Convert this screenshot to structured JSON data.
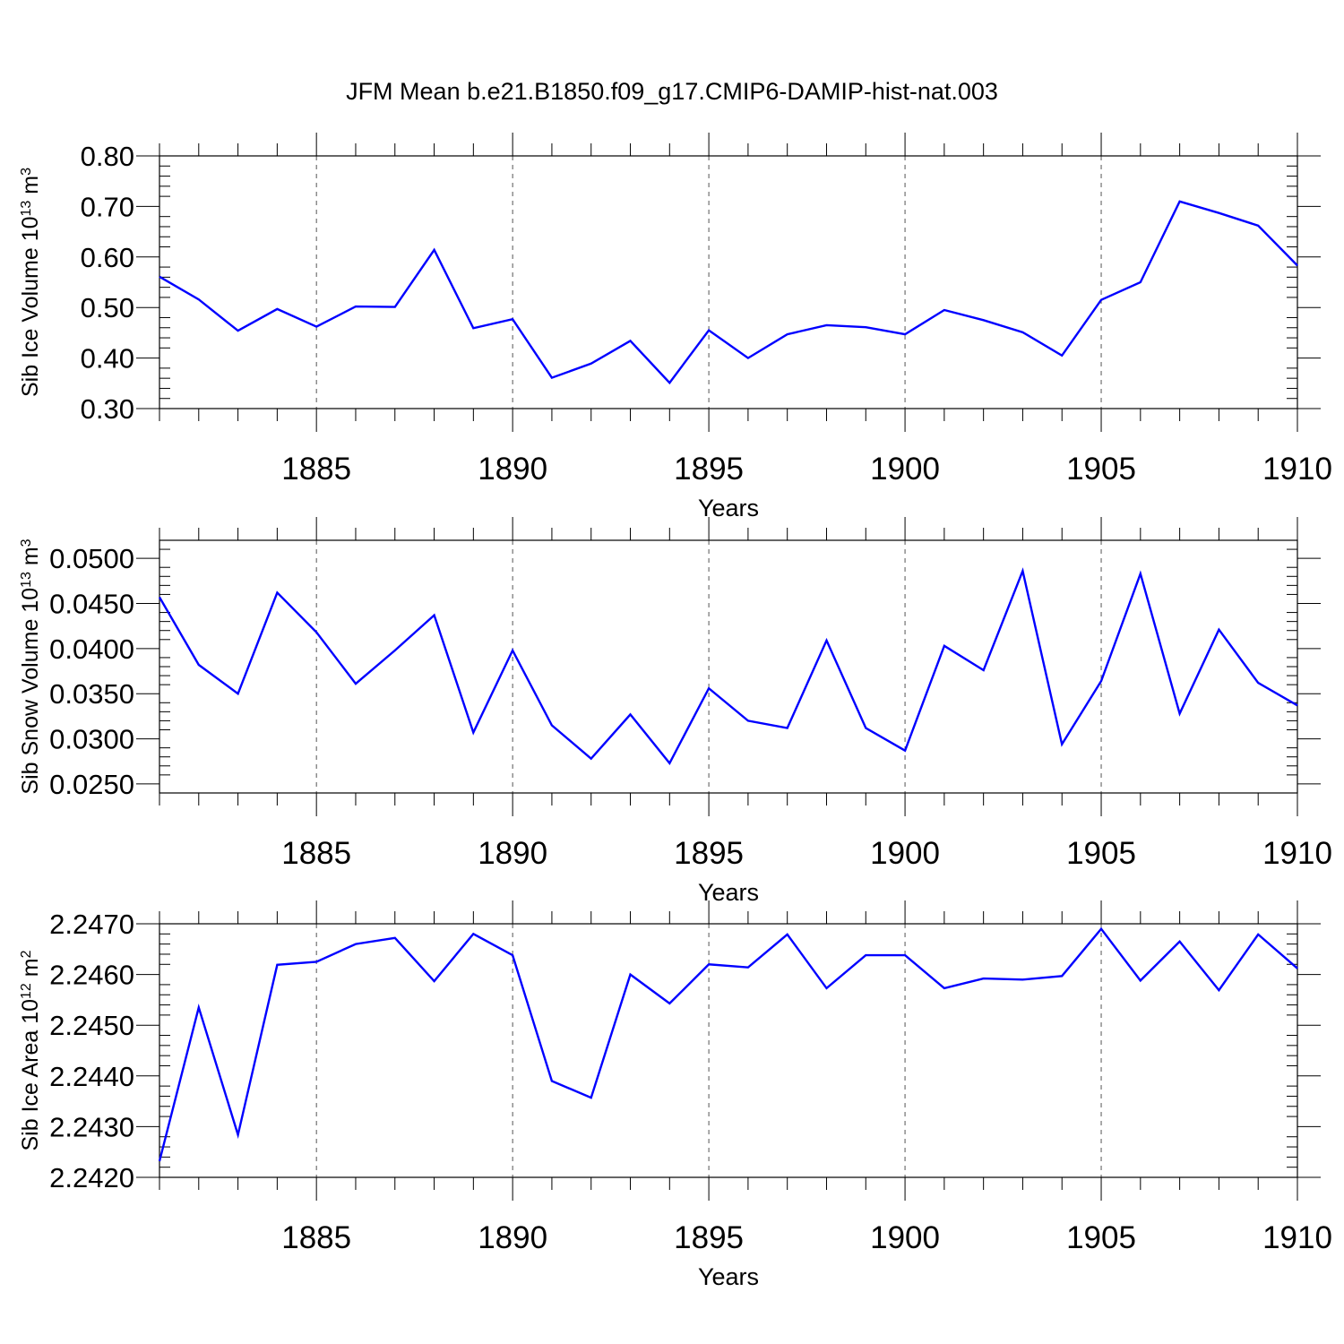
{
  "title": "JFM Mean b.e21.B1850.f09_g17.CMIP6-DAMIP-hist-nat.003",
  "colors": {
    "series": "#0000ff",
    "axes": "#000000",
    "grid": "#555555"
  },
  "chart_data": [
    {
      "type": "line",
      "ylabel": "Sib Ice Volume 10",
      "ylabel_exp": "13",
      "ylabel_unit": " m",
      "ylabel_unit_exp": "3",
      "xlabel": "Years",
      "xlim": [
        1881,
        1910
      ],
      "ylim": [
        0.3,
        0.8
      ],
      "yticks": [
        0.3,
        0.4,
        0.5,
        0.6,
        0.7,
        0.8
      ],
      "ytick_labels": [
        "0.30",
        "0.40",
        "0.50",
        "0.60",
        "0.70",
        "0.80"
      ],
      "xticks": [
        1885,
        1890,
        1895,
        1900,
        1905,
        1910
      ],
      "xtick_labels": [
        "1885",
        "1890",
        "1895",
        "1900",
        "1905",
        "1910"
      ],
      "x": [
        1881,
        1882,
        1883,
        1884,
        1885,
        1886,
        1887,
        1888,
        1889,
        1890,
        1891,
        1892,
        1893,
        1894,
        1895,
        1896,
        1897,
        1898,
        1899,
        1900,
        1901,
        1902,
        1903,
        1904,
        1905,
        1906,
        1907,
        1908,
        1909,
        1910
      ],
      "values": [
        0.561,
        0.516,
        0.454,
        0.497,
        0.462,
        0.502,
        0.501,
        0.614,
        0.459,
        0.477,
        0.361,
        0.389,
        0.434,
        0.351,
        0.455,
        0.4,
        0.447,
        0.465,
        0.461,
        0.447,
        0.495,
        0.475,
        0.451,
        0.405,
        0.515,
        0.55,
        0.71,
        0.687,
        0.662,
        0.583
      ]
    },
    {
      "type": "line",
      "ylabel": "Sib Snow Volume 10",
      "ylabel_exp": "13",
      "ylabel_unit": " m",
      "ylabel_unit_exp": "3",
      "xlabel": "Years",
      "xlim": [
        1881,
        1910
      ],
      "ylim": [
        0.024,
        0.052
      ],
      "yticks": [
        0.025,
        0.03,
        0.035,
        0.04,
        0.045,
        0.05
      ],
      "ytick_labels": [
        "0.0250",
        "0.0300",
        "0.0350",
        "0.0400",
        "0.0450",
        "0.0500"
      ],
      "xticks": [
        1885,
        1890,
        1895,
        1900,
        1905,
        1910
      ],
      "xtick_labels": [
        "1885",
        "1890",
        "1895",
        "1900",
        "1905",
        "1910"
      ],
      "x": [
        1881,
        1882,
        1883,
        1884,
        1885,
        1886,
        1887,
        1888,
        1889,
        1890,
        1891,
        1892,
        1893,
        1894,
        1895,
        1896,
        1897,
        1898,
        1899,
        1900,
        1901,
        1902,
        1903,
        1904,
        1905,
        1906,
        1907,
        1908,
        1909,
        1910
      ],
      "values": [
        0.0457,
        0.0382,
        0.035,
        0.0462,
        0.0418,
        0.0361,
        0.0398,
        0.0437,
        0.0307,
        0.0398,
        0.0315,
        0.0278,
        0.0327,
        0.0273,
        0.0356,
        0.032,
        0.0312,
        0.0409,
        0.0312,
        0.0287,
        0.0403,
        0.0376,
        0.0486,
        0.0294,
        0.0364,
        0.0483,
        0.0328,
        0.0421,
        0.0362,
        0.0337
      ]
    },
    {
      "type": "line",
      "ylabel": "Sib Ice Area 10",
      "ylabel_exp": "12",
      "ylabel_unit": " m",
      "ylabel_unit_exp": "2",
      "xlabel": "Years",
      "xlim": [
        1881,
        1910
      ],
      "ylim": [
        2.242,
        2.247
      ],
      "yticks": [
        2.242,
        2.243,
        2.244,
        2.245,
        2.246,
        2.247
      ],
      "ytick_labels": [
        "2.2420",
        "2.2430",
        "2.2440",
        "2.2450",
        "2.2460",
        "2.2470"
      ],
      "xticks": [
        1885,
        1890,
        1895,
        1900,
        1905,
        1910
      ],
      "xtick_labels": [
        "1885",
        "1890",
        "1895",
        "1900",
        "1905",
        "1910"
      ],
      "x": [
        1881,
        1882,
        1883,
        1884,
        1885,
        1886,
        1887,
        1888,
        1889,
        1890,
        1891,
        1892,
        1893,
        1894,
        1895,
        1896,
        1897,
        1898,
        1899,
        1900,
        1901,
        1902,
        1903,
        1904,
        1905,
        1906,
        1907,
        1908,
        1909,
        1910
      ],
      "values": [
        2.24232,
        2.24535,
        2.24284,
        2.24619,
        2.24625,
        2.2466,
        2.24672,
        2.24587,
        2.2468,
        2.24638,
        2.2439,
        2.24357,
        2.246,
        2.24543,
        2.2462,
        2.24614,
        2.24679,
        2.24573,
        2.24638,
        2.24638,
        2.24573,
        2.24592,
        2.2459,
        2.24597,
        2.2469,
        2.24588,
        2.24665,
        2.24569,
        2.24679,
        2.24612
      ]
    }
  ]
}
